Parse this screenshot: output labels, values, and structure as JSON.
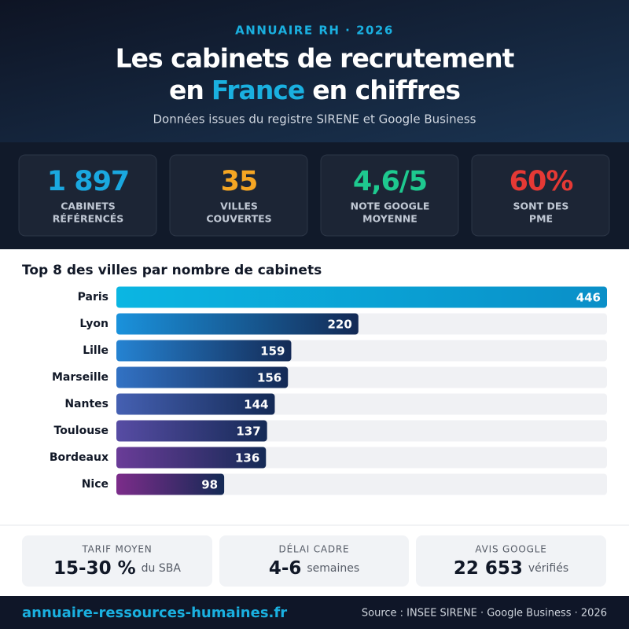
{
  "header": {
    "kicker": "ANNUAIRE RH · 2026",
    "title_line1": "Les cabinets de recrutement",
    "title_before": "en",
    "title_highlight": "France",
    "title_after": "en chiffres",
    "subtitle": "Données issues du registre SIRENE et Google Business"
  },
  "stats": [
    {
      "value": "1 897",
      "label": [
        "CABINETS",
        "RÉFÉRENCÉS"
      ],
      "color": "#1aa8e0"
    },
    {
      "value": "35",
      "label": [
        "VILLES",
        "COUVERTES"
      ],
      "color": "#f5a623"
    },
    {
      "value": "4,6/5",
      "label": [
        "NOTE GOOGLE",
        "MOYENNE"
      ],
      "color": "#1ec98f"
    },
    {
      "value": "60%",
      "label": [
        "SONT DES",
        "PME"
      ],
      "color": "#e53935"
    }
  ],
  "chart_data": {
    "type": "hbar",
    "title": "Top 8 des villes par nombre de cabinets",
    "categories": [
      "Paris",
      "Lyon",
      "Lille",
      "Marseille",
      "Nantes",
      "Toulouse",
      "Bordeaux",
      "Nice"
    ],
    "values": [
      446,
      220,
      159,
      156,
      144,
      137,
      136,
      98
    ],
    "colors": [
      "#0bb6e2",
      "#1a92dc",
      "#2583d2",
      "#3272c4",
      "#4560b2",
      "#574ca4",
      "#6a3c98",
      "#7c2c8a"
    ]
  },
  "facts": [
    {
      "label": "TARIF MOYEN",
      "value": "15-30 %",
      "unit": "du SBA"
    },
    {
      "label": "DÉLAI CADRE",
      "value": "4-6",
      "unit": "semaines"
    },
    {
      "label": "AVIS GOOGLE",
      "value": "22 653",
      "unit": "vérifiés"
    }
  ],
  "footer": {
    "url": "annuaire-ressources-humaines.fr",
    "source": "Source : INSEE SIRENE · Google Business · 2026"
  }
}
